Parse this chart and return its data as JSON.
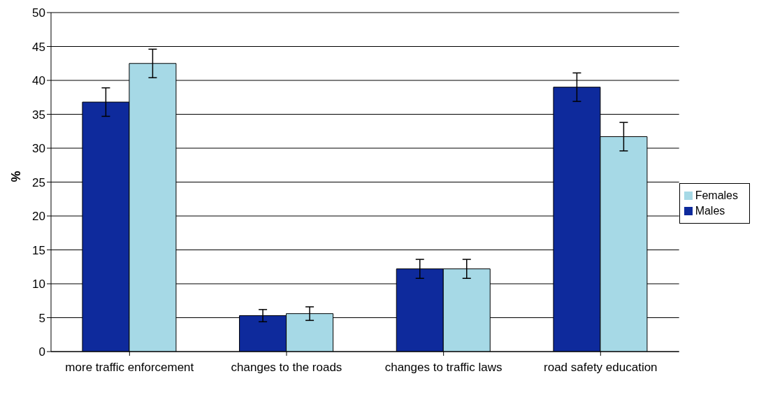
{
  "chart_data": {
    "type": "bar",
    "ylabel": "%",
    "categories": [
      "more traffic enforcement",
      "changes to the roads",
      "changes to traffic laws",
      "road safety education"
    ],
    "series": [
      {
        "name": "Males",
        "color": "#0e2a9c",
        "values": [
          36.8,
          5.3,
          12.2,
          39.0
        ],
        "errors": [
          2.1,
          0.9,
          1.4,
          2.1
        ]
      },
      {
        "name": "Females",
        "color": "#a6d9e6",
        "values": [
          42.5,
          5.6,
          12.2,
          31.7
        ],
        "errors": [
          2.1,
          1.0,
          1.4,
          2.1
        ]
      }
    ],
    "ylim": [
      0,
      50
    ],
    "yticks": [
      0,
      5,
      10,
      15,
      20,
      25,
      30,
      35,
      40,
      45,
      50
    ],
    "grid": "y",
    "legend": "right"
  }
}
